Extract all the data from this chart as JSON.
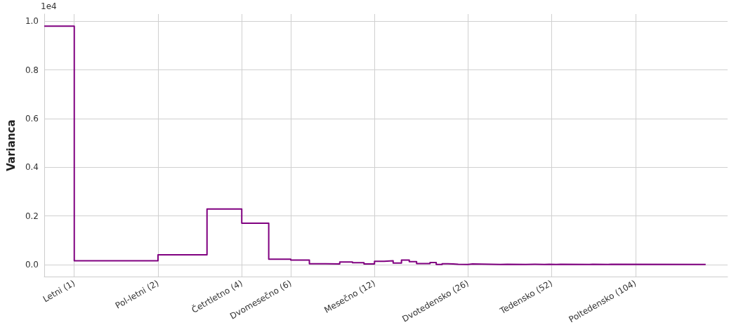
{
  "chart_data": {
    "type": "step",
    "ylabel": "Varianca",
    "annotations": [
      "1e4"
    ],
    "x": [
      0.78,
      1,
      2,
      3,
      4,
      5,
      6,
      7,
      8,
      9,
      10,
      11,
      12,
      13,
      14,
      15,
      16,
      17,
      18,
      19,
      20,
      21,
      22,
      23,
      24,
      26,
      27,
      34,
      36,
      42,
      45,
      49,
      51,
      54,
      56,
      71,
      73,
      83,
      85,
      186
    ],
    "series": [
      {
        "color": "#800080",
        "values": [
          0.98,
          0.015,
          0.04,
          0.228,
          0.17,
          0.022,
          0.018,
          0.003,
          0.002,
          0.01,
          0.007,
          0.002,
          0.013,
          0.015,
          0.006,
          0.018,
          0.012,
          0.004,
          0.004,
          0.008,
          0.0,
          0.003,
          0.002,
          0.001,
          0.0,
          0.002,
          0.0,
          0.001,
          0.0,
          0.001,
          0.0,
          0.001,
          0.0,
          0.001,
          0.0,
          0.001,
          0.0,
          0.001,
          0.0,
          0.0
        ]
      }
    ],
    "log": "x",
    "xlim": [
      0.78,
      223
    ],
    "xticks": [
      {
        "value": 1,
        "label": "Letni (1)"
      },
      {
        "value": 2,
        "label": "Pol-letni (2)"
      },
      {
        "value": 4,
        "label": "Četrtletno (4)"
      },
      {
        "value": 6,
        "label": "Dvomesečno (6)"
      },
      {
        "value": 12,
        "label": "Mesečno (12)"
      },
      {
        "value": 26,
        "label": "Dvotedensko (26)"
      },
      {
        "value": 52,
        "label": "Tedensko (52)"
      },
      {
        "value": 104,
        "label": "Poltedensko (104)"
      }
    ],
    "ylim": [
      -0.05,
      1.03
    ],
    "yticks": [
      {
        "value": 0,
        "label": "0.0"
      },
      {
        "value": 0.2,
        "label": "0.2"
      },
      {
        "value": 0.4,
        "label": "0.4"
      },
      {
        "value": 0.6,
        "label": "0.6"
      },
      {
        "value": 0.8,
        "label": "0.8"
      },
      {
        "value": 1,
        "label": "1.0"
      }
    ],
    "grid": true,
    "marker": "none",
    "line_style": "solid"
  }
}
